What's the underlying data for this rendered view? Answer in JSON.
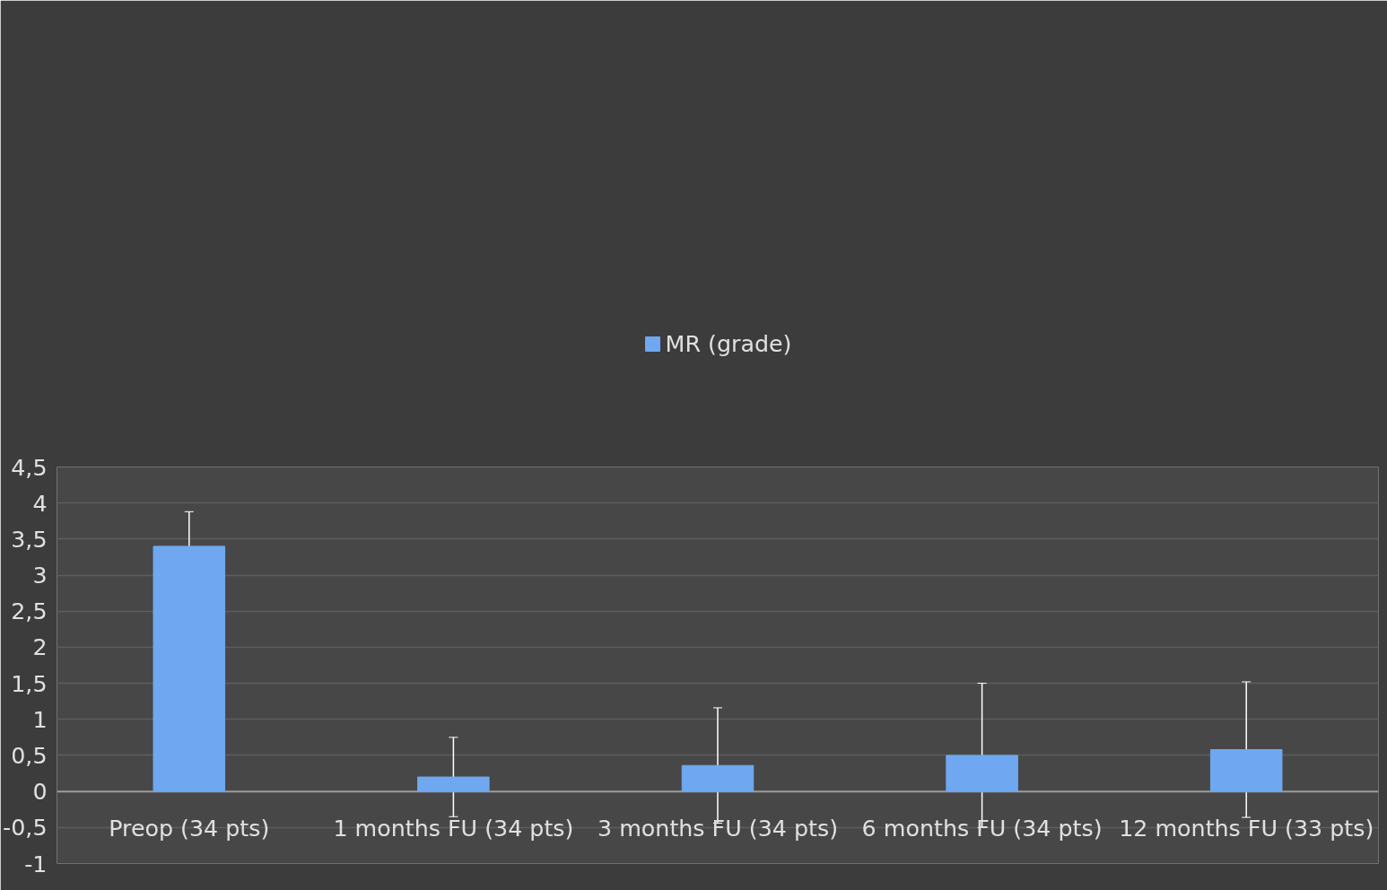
{
  "chart_data": {
    "type": "bar",
    "categories": [
      "Preop (34 pts)",
      "1 months FU (34 pts)",
      "3 months FU (34 pts)",
      "6 months FU (34 pts)",
      "12 months FU (33 pts)"
    ],
    "series": [
      {
        "name": "MR (grade)",
        "color": "#6fa8f0",
        "values": [
          3.4,
          0.2,
          0.36,
          0.5,
          0.58
        ],
        "errors": [
          0.48,
          0.55,
          0.8,
          1.0,
          0.94
        ]
      }
    ],
    "ylim": [
      -1,
      4.5
    ],
    "yticks": [
      {
        "value": -1,
        "label": "-1"
      },
      {
        "value": -0.5,
        "label": "-0,5"
      },
      {
        "value": 0,
        "label": "0"
      },
      {
        "value": 0.5,
        "label": "0,5"
      },
      {
        "value": 1,
        "label": "1"
      },
      {
        "value": 1.5,
        "label": "1,5"
      },
      {
        "value": 2,
        "label": "2"
      },
      {
        "value": 2.5,
        "label": "2,5"
      },
      {
        "value": 3,
        "label": "3"
      },
      {
        "value": 3.5,
        "label": "3,5"
      },
      {
        "value": 4,
        "label": "4"
      },
      {
        "value": 4.5,
        "label": "4,5"
      }
    ],
    "grid": "y",
    "legend": "top"
  }
}
